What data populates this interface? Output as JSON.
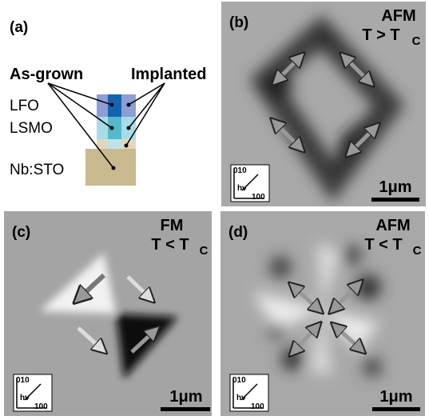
{
  "panel_a": {
    "label": "(a)",
    "as_grown": "As-grown",
    "implanted": "Implanted",
    "layers": [
      "LFO",
      "LSMO",
      "Nb:STO"
    ]
  },
  "panel_b": {
    "label": "(b)",
    "order": "AFM",
    "condition": "T > T",
    "condition_sub": "C",
    "scale": "1μm",
    "axis_top": "010",
    "axis_photon": "hν",
    "axis_bottom": "100"
  },
  "panel_c": {
    "label": "(c)",
    "order": "FM",
    "condition": "T < T",
    "condition_sub": "C",
    "scale": "1μm",
    "axis_top": "010",
    "axis_photon": "hν",
    "axis_bottom": "100"
  },
  "panel_d": {
    "label": "(d)",
    "order": "AFM",
    "condition": "T < T",
    "condition_sub": "C",
    "scale": "1μm",
    "axis_top": "010",
    "axis_photon": "hν",
    "axis_bottom": "100"
  }
}
